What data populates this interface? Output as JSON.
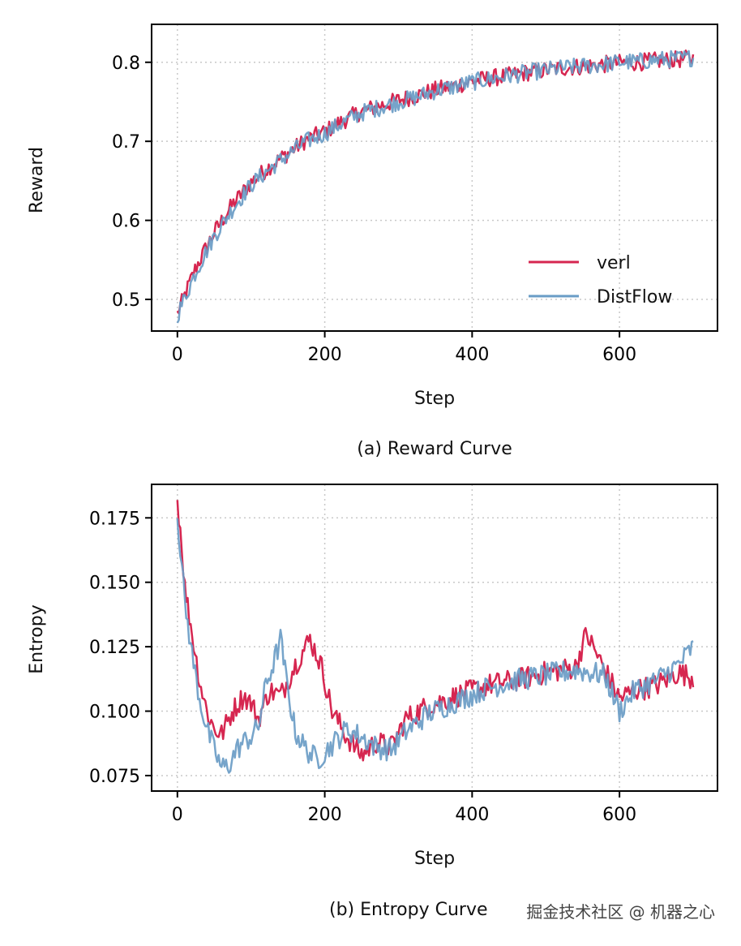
{
  "captions": {
    "a": "(a) Reward Curve",
    "b": "(b) Entropy Curve"
  },
  "watermark": "掘金技术社区 @ 机器之心",
  "colors": {
    "verl": "#d62650",
    "distflow": "#6a9cc6",
    "grid": "#c8c8c8"
  },
  "chart_data": [
    {
      "type": "line",
      "title": "",
      "xlabel": "Step",
      "ylabel": "Reward",
      "xlim": [
        -35,
        733
      ],
      "ylim": [
        0.46,
        0.848
      ],
      "xticks": [
        0,
        200,
        400,
        600
      ],
      "yticks": [
        0.5,
        0.6,
        0.7,
        0.8
      ],
      "ytick_labels": [
        "0.5",
        "0.6",
        "0.7",
        "0.8"
      ],
      "grid": true,
      "legend": "lower-right",
      "series": [
        {
          "name": "verl",
          "x": [
            0,
            25,
            50,
            75,
            100,
            125,
            150,
            175,
            200,
            225,
            250,
            275,
            300,
            325,
            350,
            375,
            400,
            425,
            450,
            475,
            500,
            525,
            550,
            575,
            600,
            625,
            650,
            675,
            700
          ],
          "y": [
            0.482,
            0.54,
            0.585,
            0.62,
            0.648,
            0.668,
            0.685,
            0.702,
            0.712,
            0.726,
            0.738,
            0.745,
            0.752,
            0.758,
            0.765,
            0.77,
            0.776,
            0.78,
            0.783,
            0.787,
            0.79,
            0.793,
            0.795,
            0.797,
            0.799,
            0.8,
            0.802,
            0.803,
            0.805
          ]
        },
        {
          "name": "DistFlow",
          "x": [
            0,
            25,
            50,
            75,
            100,
            125,
            150,
            175,
            200,
            225,
            250,
            275,
            300,
            325,
            350,
            375,
            400,
            425,
            450,
            475,
            500,
            525,
            550,
            575,
            600,
            625,
            650,
            675,
            700
          ],
          "y": [
            0.48,
            0.535,
            0.58,
            0.615,
            0.645,
            0.665,
            0.683,
            0.7,
            0.71,
            0.724,
            0.736,
            0.743,
            0.75,
            0.756,
            0.764,
            0.769,
            0.775,
            0.779,
            0.783,
            0.787,
            0.79,
            0.793,
            0.795,
            0.797,
            0.8,
            0.801,
            0.803,
            0.804,
            0.806
          ]
        }
      ]
    },
    {
      "type": "line",
      "title": "",
      "xlabel": "Step",
      "ylabel": "Entropy",
      "xlim": [
        -35,
        733
      ],
      "ylim": [
        0.069,
        0.188
      ],
      "xticks": [
        0,
        200,
        400,
        600
      ],
      "yticks": [
        0.075,
        0.1,
        0.125,
        0.15,
        0.175
      ],
      "ytick_labels": [
        "0.075",
        "0.100",
        "0.125",
        "0.150",
        "0.175"
      ],
      "grid": true,
      "series": [
        {
          "name": "verl",
          "x": [
            0,
            5,
            10,
            20,
            30,
            40,
            50,
            60,
            75,
            90,
            100,
            110,
            125,
            140,
            160,
            180,
            195,
            210,
            230,
            250,
            270,
            290,
            310,
            340,
            380,
            420,
            460,
            500,
            540,
            555,
            580,
            600,
            620,
            650,
            680,
            700
          ],
          "y": [
            0.182,
            0.168,
            0.148,
            0.13,
            0.112,
            0.1,
            0.093,
            0.091,
            0.1,
            0.106,
            0.103,
            0.097,
            0.108,
            0.106,
            0.118,
            0.128,
            0.118,
            0.1,
            0.09,
            0.083,
            0.088,
            0.086,
            0.097,
            0.102,
            0.106,
            0.11,
            0.112,
            0.115,
            0.117,
            0.13,
            0.116,
            0.105,
            0.108,
            0.11,
            0.115,
            0.113
          ]
        },
        {
          "name": "DistFlow",
          "x": [
            0,
            5,
            10,
            20,
            30,
            40,
            50,
            60,
            70,
            80,
            90,
            100,
            110,
            120,
            130,
            140,
            150,
            160,
            175,
            190,
            210,
            230,
            250,
            270,
            290,
            310,
            340,
            380,
            420,
            460,
            500,
            540,
            580,
            600,
            620,
            650,
            680,
            700
          ],
          "y": [
            0.176,
            0.16,
            0.142,
            0.122,
            0.105,
            0.093,
            0.085,
            0.078,
            0.079,
            0.085,
            0.088,
            0.09,
            0.094,
            0.11,
            0.118,
            0.128,
            0.108,
            0.092,
            0.085,
            0.081,
            0.087,
            0.093,
            0.09,
            0.086,
            0.085,
            0.092,
            0.099,
            0.104,
            0.109,
            0.112,
            0.114,
            0.116,
            0.114,
            0.1,
            0.108,
            0.112,
            0.118,
            0.125
          ]
        }
      ]
    }
  ]
}
